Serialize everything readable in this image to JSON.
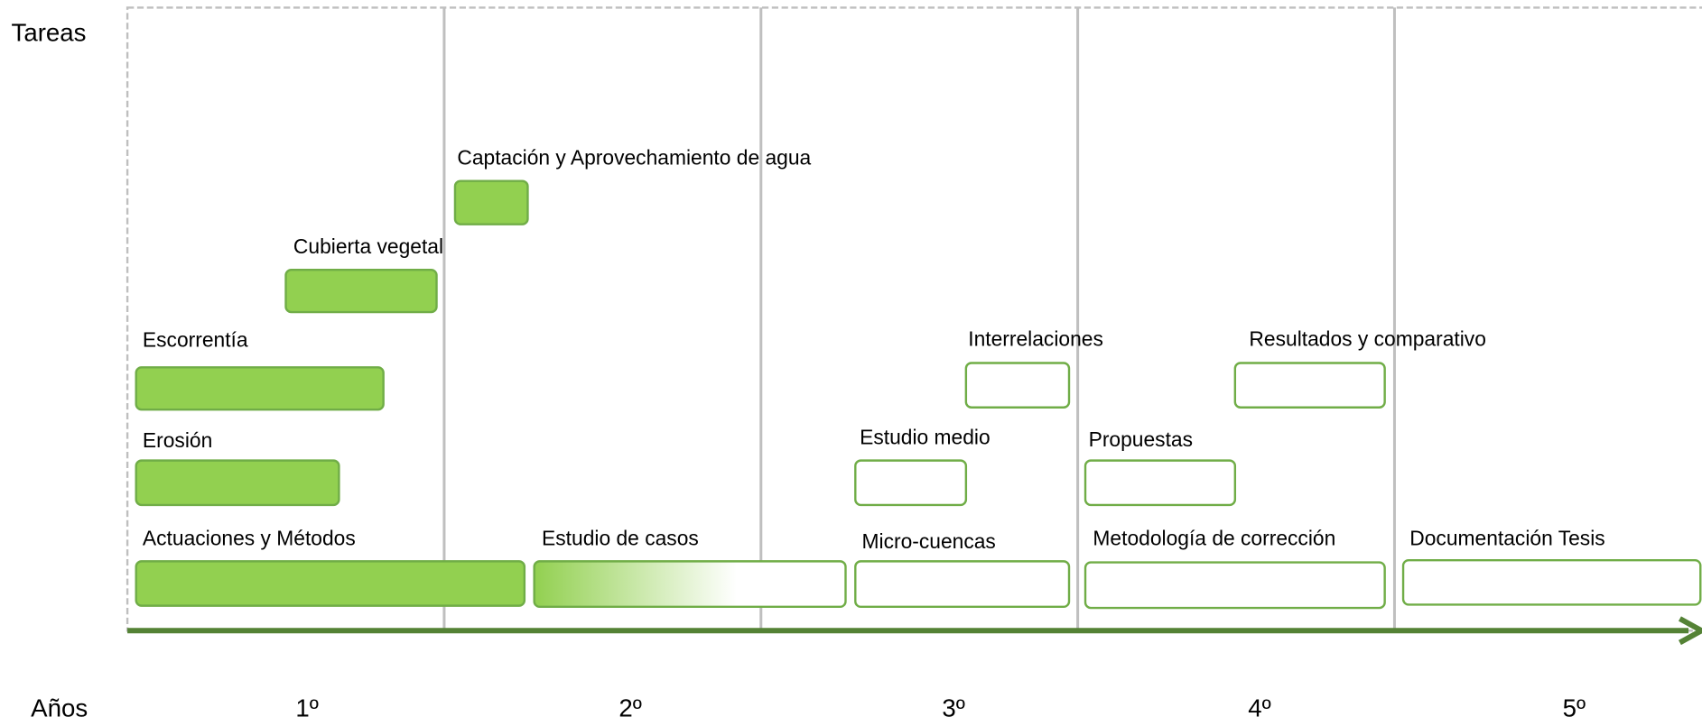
{
  "row_label": "Tareas",
  "axis_label": "Años",
  "years": [
    "1º",
    "2º",
    "3º",
    "4º",
    "5º"
  ],
  "tasks": [
    {
      "label": "Captación y Aprovechamiento de agua"
    },
    {
      "label": "Cubierta vegetal"
    },
    {
      "label": "Escorrentía"
    },
    {
      "label": "Erosión"
    },
    {
      "label": "Actuaciones y Métodos"
    },
    {
      "label": "Estudio de casos"
    },
    {
      "label": "Interrelaciones"
    },
    {
      "label": "Resultados y comparativo"
    },
    {
      "label": "Estudio medio"
    },
    {
      "label": "Propuestas"
    },
    {
      "label": "Micro-cuencas"
    },
    {
      "label": "Metodología de corrección"
    },
    {
      "label": "Documentación Tesis"
    }
  ]
}
